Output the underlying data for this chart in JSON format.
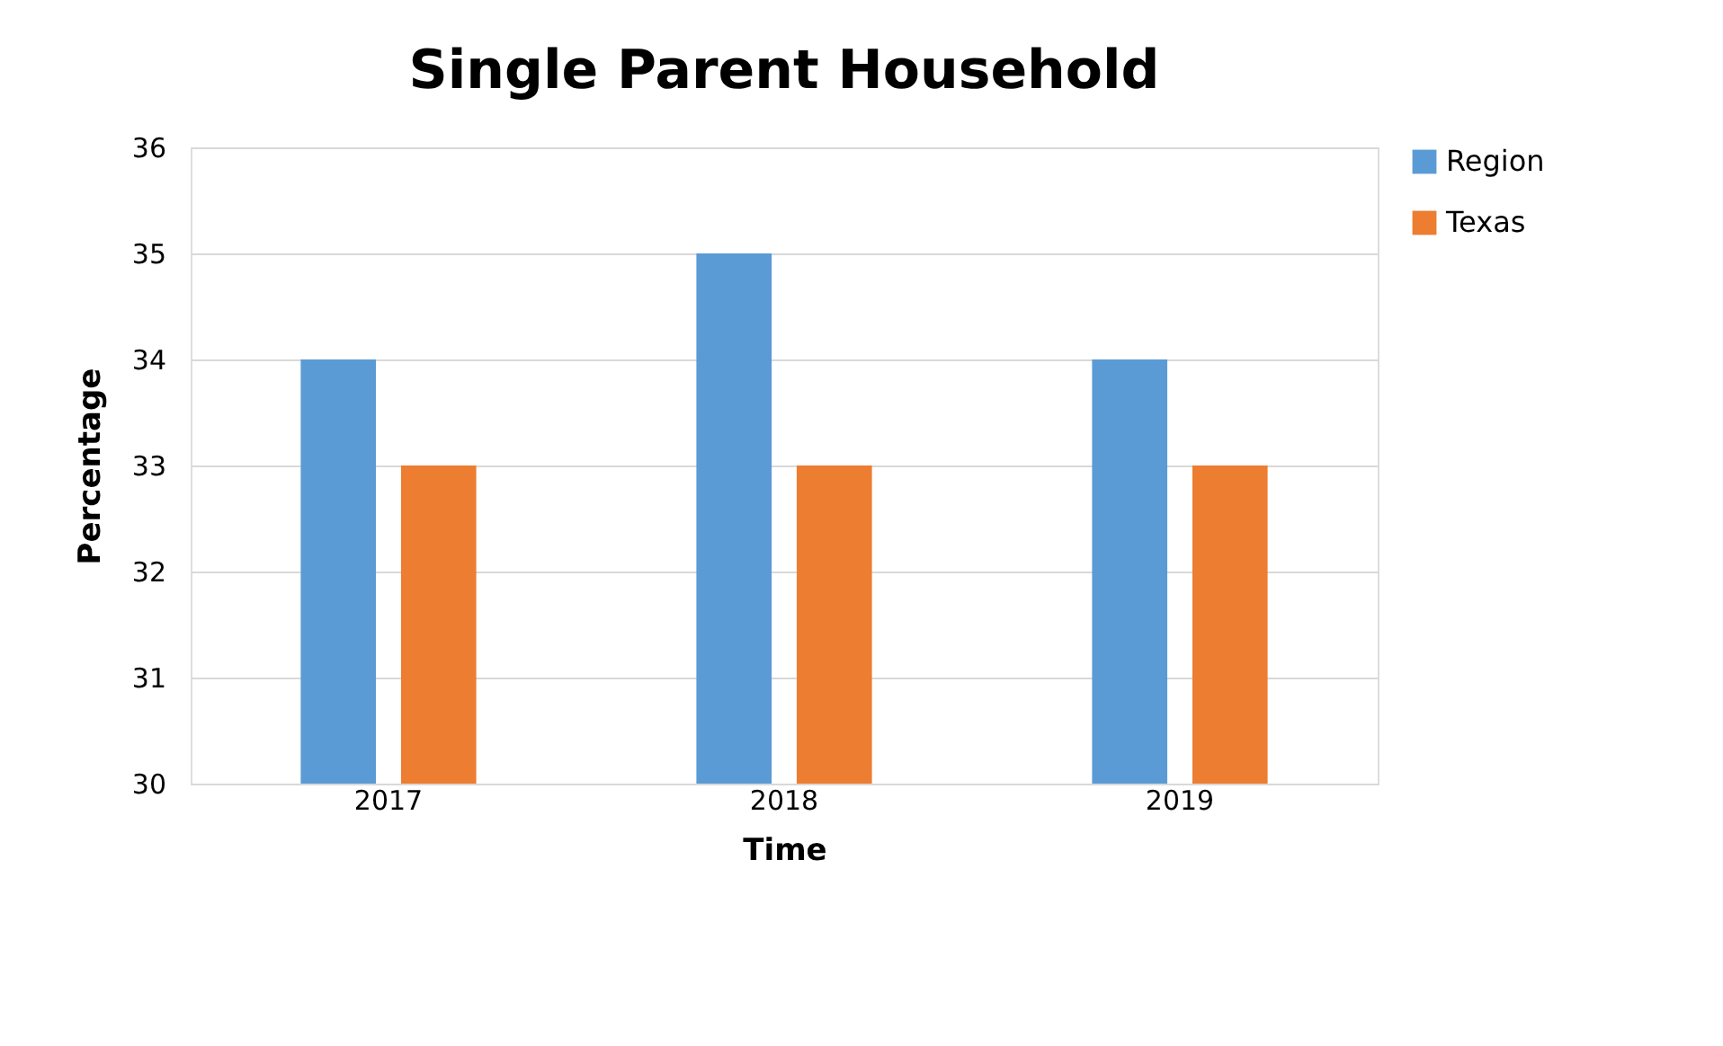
{
  "chart_data": {
    "type": "bar",
    "title": "Single Parent Household",
    "xlabel": "Time",
    "ylabel": "Percentage",
    "categories": [
      "2017",
      "2018",
      "2019"
    ],
    "series": [
      {
        "name": "Region",
        "color": "#5b9bd5",
        "values": [
          34,
          35,
          34
        ]
      },
      {
        "name": "Texas",
        "color": "#ed7d31",
        "values": [
          33,
          33,
          33
        ]
      }
    ],
    "ylim": [
      30,
      36
    ],
    "yticks": [
      30,
      31,
      32,
      33,
      34,
      35,
      36
    ],
    "grid": "y",
    "legend": "right"
  }
}
